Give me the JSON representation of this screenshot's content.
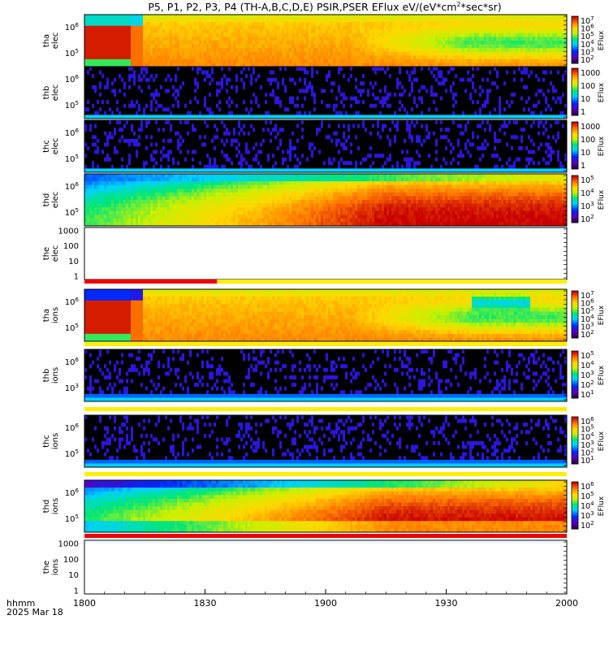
{
  "chart_data": {
    "type": "heatmap",
    "title": "P5, P1, P2, P3, P4 (TH-A,B,C,D,E) PSIR,PSER EFlux eV/(eV*cm",
    "title_sup": "2",
    "title_tail": "*sec*sr)",
    "xaxis": {
      "ticks": [
        "1800",
        "1830",
        "1900",
        "1930",
        "2000"
      ],
      "tick_minutes": [
        0,
        30,
        60,
        90,
        120
      ],
      "range_minutes": [
        0,
        120
      ],
      "label_line1": "hhmm",
      "label_line2": "2025 Mar 18"
    },
    "panels": [
      {
        "label1": "tha",
        "label2": "elec",
        "kind": "spec",
        "pattern": "tha_e",
        "yticks": [
          "10",
          "10"
        ],
        "yexp": [
          "6",
          "5"
        ],
        "cticks": [
          "10",
          "10",
          "10",
          "10",
          "10",
          "10"
        ],
        "cexp": [
          "7",
          "6",
          "5",
          "4",
          "3",
          "2"
        ],
        "cbar_title": "EFlux"
      },
      {
        "label1": "thb",
        "label2": "elec",
        "kind": "spec",
        "pattern": "noise",
        "yticks": [
          "10",
          "10"
        ],
        "yexp": [
          "6",
          "5"
        ],
        "cticks": [
          "1000",
          "100",
          "10",
          "1"
        ],
        "cexp": [],
        "cbar_title": "EFlux"
      },
      {
        "label1": "thc",
        "label2": "elec",
        "kind": "spec",
        "pattern": "noise",
        "yticks": [
          "10",
          "10"
        ],
        "yexp": [
          "6",
          "5"
        ],
        "cticks": [
          "1000",
          "100",
          "10",
          "1"
        ],
        "cexp": [],
        "cbar_title": "EFlux"
      },
      {
        "label1": "thd",
        "label2": "elec",
        "kind": "spec",
        "pattern": "thd_e",
        "yticks": [
          "10",
          "10"
        ],
        "yexp": [
          "6",
          "5"
        ],
        "cticks": [
          "10",
          "10",
          "10",
          "10"
        ],
        "cexp": [
          "5",
          "4",
          "3",
          "2"
        ],
        "cbar_title": "EFlux"
      },
      {
        "label1": "the",
        "label2": "elec",
        "kind": "empty",
        "yticks": [
          "1000",
          "100",
          "10",
          "1"
        ]
      },
      {
        "label1": "tha",
        "label2": "ions",
        "kind": "spec",
        "pattern": "tha_i",
        "yticks": [
          "10",
          "10"
        ],
        "yexp": [
          "6",
          "5"
        ],
        "cticks": [
          "10",
          "10",
          "10",
          "10",
          "10",
          "10"
        ],
        "cexp": [
          "7",
          "6",
          "5",
          "4",
          "3",
          "2"
        ],
        "cbar_title": "EFlux"
      },
      {
        "label1": "thb",
        "label2": "ions",
        "kind": "spec",
        "pattern": "noise_i",
        "yticks": [
          "10",
          "10"
        ],
        "yexp": [
          "6",
          "3"
        ],
        "cticks": [
          "10",
          "10",
          "10",
          "10",
          "10"
        ],
        "cexp": [
          "5",
          "4",
          "3",
          "2",
          "1"
        ],
        "cbar_title": "EFlux"
      },
      {
        "label1": "thc",
        "label2": "ions",
        "kind": "spec",
        "pattern": "noise_i",
        "yticks": [
          "10",
          "10"
        ],
        "yexp": [
          "6",
          "5"
        ],
        "cticks": [
          "10",
          "10",
          "10",
          "10",
          "10",
          "10"
        ],
        "cexp": [
          "6",
          "5",
          "4",
          "3",
          "2",
          "1"
        ],
        "cbar_title": "EFlux"
      },
      {
        "label1": "thd",
        "label2": "ions",
        "kind": "spec",
        "pattern": "thd_i",
        "yticks": [
          "10",
          "10"
        ],
        "yexp": [
          "6",
          "5"
        ],
        "cticks": [
          "10",
          "10",
          "10",
          "10",
          "10"
        ],
        "cexp": [
          "6",
          "5",
          "4",
          "3",
          "2"
        ],
        "cbar_title": "EFlux"
      },
      {
        "label1": "the",
        "label2": "ions",
        "kind": "empty",
        "yticks": [
          "1000",
          "100",
          "10",
          "1"
        ]
      }
    ],
    "status_bars": [
      {
        "after_panel": 4,
        "segments": [
          {
            "from": 0,
            "to": 33,
            "color": "#ee0000"
          },
          {
            "from": 33,
            "to": 120,
            "color": "#ffee00"
          }
        ]
      },
      {
        "after_panel": 5,
        "segments": [
          {
            "from": 0,
            "to": 120,
            "color": "#ffee00"
          }
        ]
      },
      {
        "after_panel": 6,
        "segments": [
          {
            "from": 0,
            "to": 120,
            "color": "#ffee00"
          }
        ]
      },
      {
        "after_panel": 7,
        "segments": [
          {
            "from": 0,
            "to": 120,
            "color": "#ffee00"
          }
        ]
      },
      {
        "after_panel": 8,
        "segments": [
          {
            "from": 0,
            "to": 120,
            "color": "#ee0000"
          }
        ]
      }
    ]
  }
}
